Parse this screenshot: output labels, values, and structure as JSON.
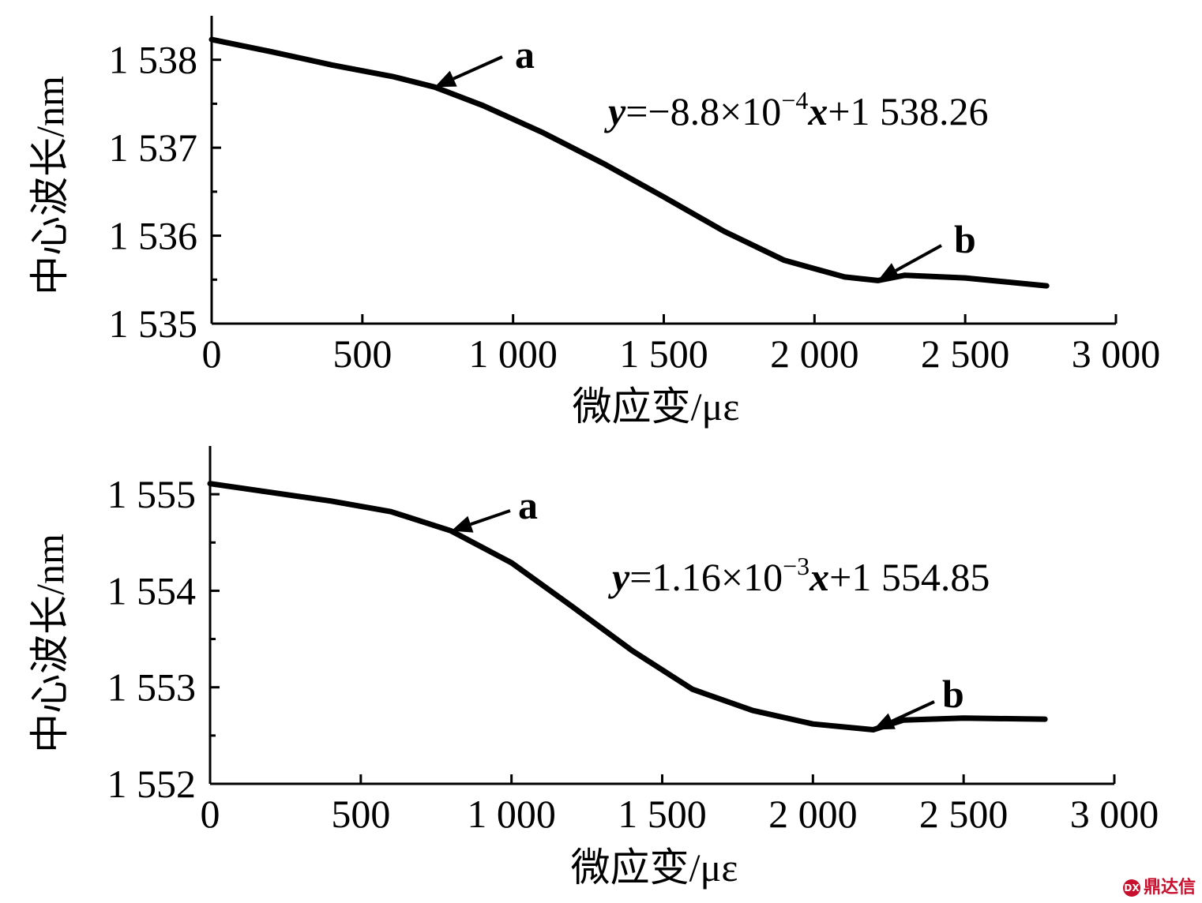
{
  "chart_data": [
    {
      "type": "line",
      "xlabel": "微应变/με",
      "ylabel": "中心波长/nm",
      "xlim": [
        0,
        3000
      ],
      "ylim": [
        1535,
        1538.5
      ],
      "xticks": [
        0,
        500,
        1000,
        1500,
        2000,
        2500,
        3000
      ],
      "xtick_labels": [
        "0",
        "500",
        "1 000",
        "1 500",
        "2 000",
        "2 500",
        "3 000"
      ],
      "yticks": [
        1535,
        1536,
        1537,
        1538
      ],
      "ytick_labels": [
        "1 535",
        "1 536",
        "1 537",
        "1 538"
      ],
      "yminor": [
        1535.5,
        1536.5,
        1537.5
      ],
      "series": [
        {
          "x": [
            0,
            200,
            400,
            600,
            740,
            900,
            1100,
            1300,
            1500,
            1700,
            1900,
            2100,
            2210,
            2300,
            2500,
            2770
          ],
          "y": [
            1538.23,
            1538.09,
            1537.94,
            1537.81,
            1537.69,
            1537.48,
            1537.17,
            1536.82,
            1536.44,
            1536.05,
            1535.72,
            1535.53,
            1535.49,
            1535.55,
            1535.52,
            1535.43
          ]
        }
      ],
      "annotations": [
        {
          "text": "a",
          "x": 740,
          "y": 1537.69
        },
        {
          "text": "b",
          "x": 2210,
          "y": 1535.49
        }
      ],
      "equation": {
        "y": "y",
        "eq": "=−8.8×10",
        "exp": "−4",
        "x": "x",
        "rest": "+1 538.26"
      }
    },
    {
      "type": "line",
      "xlabel": "微应变/με",
      "ylabel": "中心波长/nm",
      "xlim": [
        0,
        3000
      ],
      "ylim": [
        1552,
        1555.5
      ],
      "xticks": [
        0,
        500,
        1000,
        1500,
        2000,
        2500,
        3000
      ],
      "xtick_labels": [
        "0",
        "500",
        "1 000",
        "1 500",
        "2 000",
        "2 500",
        "3 000"
      ],
      "yticks": [
        1552,
        1553,
        1554,
        1555
      ],
      "ytick_labels": [
        "1 552",
        "1 553",
        "1 554",
        "1 555"
      ],
      "yminor": [
        1552.5,
        1553.5,
        1554.5
      ],
      "series": [
        {
          "x": [
            0,
            200,
            400,
            600,
            800,
            1000,
            1200,
            1400,
            1600,
            1800,
            2000,
            2200,
            2300,
            2500,
            2770
          ],
          "y": [
            1555.11,
            1555.02,
            1554.93,
            1554.82,
            1554.62,
            1554.29,
            1553.84,
            1553.38,
            1552.98,
            1552.76,
            1552.62,
            1552.56,
            1552.66,
            1552.68,
            1552.67
          ]
        }
      ],
      "annotations": [
        {
          "text": "a",
          "x": 800,
          "y": 1554.62
        },
        {
          "text": "b",
          "x": 2200,
          "y": 1552.56
        }
      ],
      "equation": {
        "y": "y",
        "eq": "=1.16×10",
        "exp": "−3",
        "x": "x",
        "rest": "+1 554.85"
      }
    }
  ],
  "watermark": "鼎达信"
}
